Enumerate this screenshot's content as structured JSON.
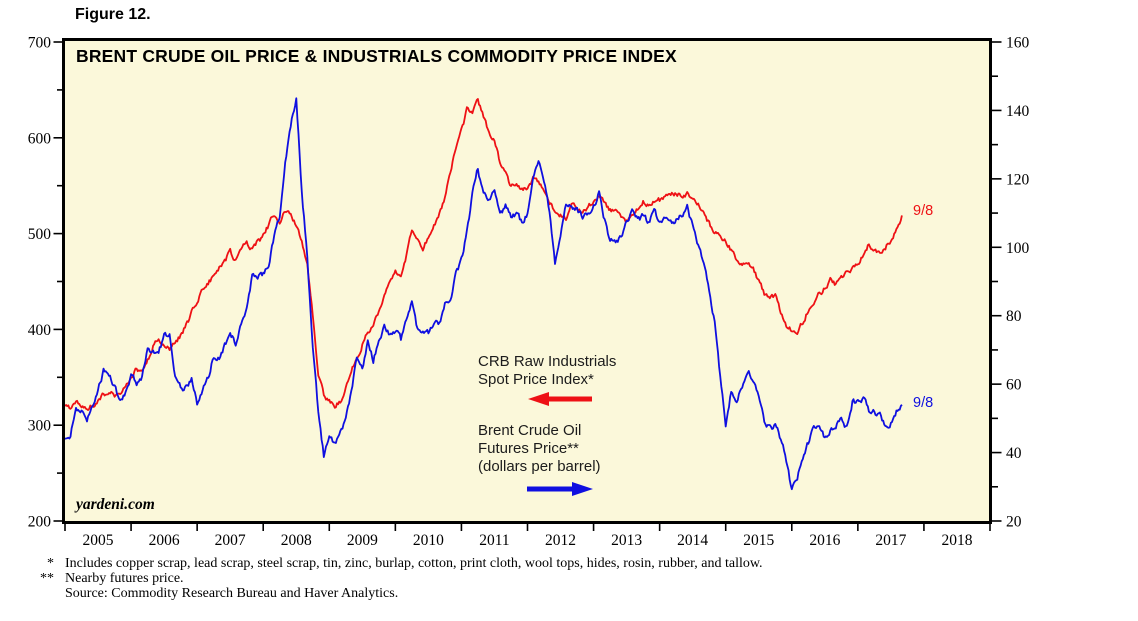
{
  "figure_label": "Figure 12.",
  "chart_title": "BRENT CRUDE OIL PRICE & INDUSTRIALS COMMODITY PRICE INDEX",
  "watermark": "yardeni.com",
  "colors": {
    "crb": "#ee1115",
    "brent": "#0f0fe0",
    "plot_background": "#fbf8da",
    "frame": "#000000",
    "text": "#000000"
  },
  "annotations": {
    "crb_label_line1": "CRB Raw Industrials",
    "crb_label_line2": "Spot Price Index*",
    "brent_label_line1": "Brent Crude Oil",
    "brent_label_line2": "Futures Price**",
    "brent_label_line3": "(dollars per barrel)",
    "crb_end_label": "9/8",
    "brent_end_label": "9/8"
  },
  "footnotes": [
    {
      "marker": "*",
      "text": "Includes copper scrap, lead scrap, steel scrap, tin, zinc, burlap, cotton, print cloth, wool tops, hides, rosin, rubber, and tallow."
    },
    {
      "marker": "**",
      "text": "Nearby futures price."
    },
    {
      "marker": "",
      "text": "Source: Commodity Research Bureau and Haver Analytics."
    }
  ],
  "chart_data": {
    "type": "line",
    "title": "BRENT CRUDE OIL PRICE & INDUSTRIALS COMMODITY PRICE INDEX",
    "grid": false,
    "legend_position": "inline-annotations",
    "x_axis": {
      "range": [
        2005,
        2019
      ],
      "tick_years": [
        2005,
        2006,
        2007,
        2008,
        2009,
        2010,
        2011,
        2012,
        2013,
        2014,
        2015,
        2016,
        2017,
        2018
      ]
    },
    "left_axis": {
      "label": "CRB Raw Industrials Spot Price Index",
      "range": [
        200,
        700
      ],
      "major_ticks": [
        200,
        300,
        400,
        500,
        600,
        700
      ],
      "minor_ticks": [
        250,
        350,
        450,
        550,
        650
      ]
    },
    "right_axis": {
      "label": "Brent Crude Oil Futures Price (dollars per barrel)",
      "range": [
        20,
        160
      ],
      "major_ticks": [
        20,
        40,
        60,
        80,
        100,
        120,
        140,
        160
      ],
      "minor_ticks": [
        30,
        50,
        70,
        90,
        110,
        130,
        150
      ]
    },
    "sampling": "monthly, Jan 2005 through Sep 8 2017 (last point labeled 9/8)",
    "series": [
      {
        "name": "CRB Raw Industrials Spot Price Index",
        "axis": "left",
        "color": "#ee1115",
        "end_value": 519,
        "monthly_values": [
          320,
          317,
          323,
          321,
          317,
          320,
          325,
          331,
          335,
          331,
          334,
          342,
          352,
          358,
          356,
          368,
          382,
          391,
          386,
          381,
          386,
          393,
          404,
          417,
          429,
          441,
          449,
          456,
          463,
          472,
          481,
          471,
          482,
          491,
          484,
          491,
          498,
          509,
          520,
          513,
          525,
          519,
          509,
          493,
          468,
          415,
          355,
          331,
          326,
          320,
          325,
          338,
          356,
          372,
          384,
          397,
          404,
          418,
          433,
          448,
          462,
          458,
          478,
          505,
          492,
          485,
          495,
          508,
          520,
          538,
          562,
          590,
          606,
          629,
          625,
          638,
          622,
          605,
          598,
          575,
          565,
          548,
          552,
          545,
          548,
          558,
          552,
          545,
          533,
          522,
          519,
          517,
          530,
          527,
          521,
          528,
          534,
          539,
          533,
          525,
          522,
          517,
          513,
          521,
          527,
          533,
          528,
          533,
          535,
          538,
          541,
          543,
          540,
          542,
          538,
          530,
          520,
          510,
          502,
          498,
          492,
          482,
          472,
          468,
          470,
          462,
          450,
          438,
          432,
          436,
          418,
          404,
          398,
          396,
          408,
          420,
          427,
          437,
          443,
          451,
          447,
          454,
          461,
          464,
          467,
          477,
          489,
          483,
          479,
          485,
          494,
          504,
          519
        ]
      },
      {
        "name": "Brent Crude Oil Futures Price",
        "axis": "right",
        "color": "#0f0fe0",
        "end_value": 54,
        "monthly_values": [
          44,
          45,
          53,
          52,
          49,
          54,
          58,
          64,
          63,
          59,
          55,
          57,
          63,
          60,
          62,
          70,
          70,
          69,
          74,
          74,
          63,
          59,
          59,
          62,
          54,
          58,
          62,
          68,
          67,
          71,
          76,
          71,
          77,
          82,
          92,
          91,
          92,
          95,
          103,
          109,
          125,
          135,
          144,
          116,
          98,
          70,
          52,
          39,
          44,
          43,
          46,
          50,
          57,
          68,
          65,
          72,
          67,
          73,
          77,
          74,
          76,
          73,
          79,
          85,
          76,
          75,
          75,
          77,
          78,
          83,
          85,
          92,
          96,
          104,
          115,
          123,
          115,
          114,
          117,
          110,
          112,
          109,
          110,
          107,
          110,
          119,
          125,
          120,
          110,
          95,
          102,
          113,
          112,
          111,
          109,
          109,
          112,
          116,
          108,
          102,
          102,
          103,
          107,
          111,
          108,
          109,
          107,
          110,
          108,
          108,
          107,
          108,
          109,
          112,
          106,
          101,
          95,
          87,
          78,
          62,
          48,
          58,
          55,
          59,
          64,
          61,
          56,
          49,
          47,
          48,
          44,
          38,
          29,
          33,
          39,
          43,
          47,
          48,
          44,
          47,
          48,
          50,
          47,
          55,
          55,
          56,
          52,
          52,
          51,
          47,
          49,
          52,
          54
        ]
      }
    ]
  }
}
